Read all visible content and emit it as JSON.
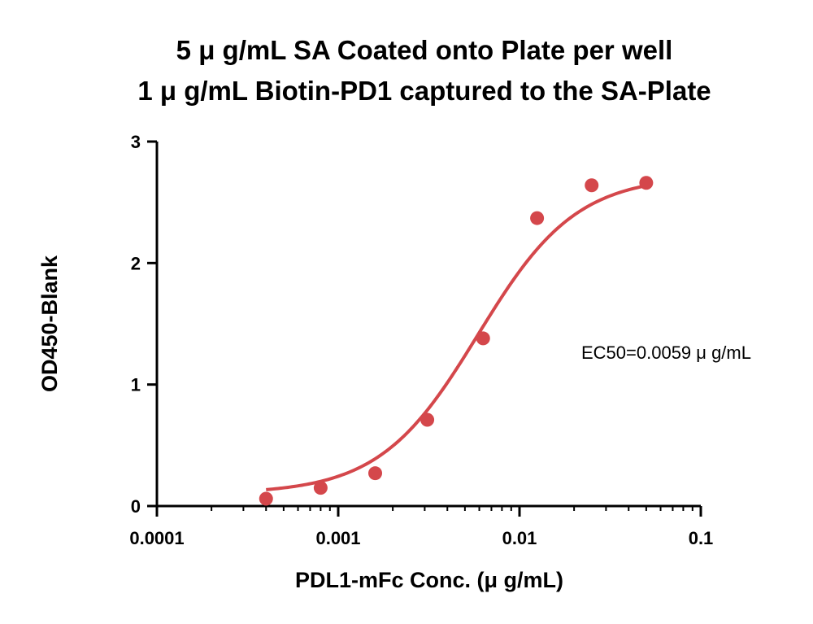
{
  "chart_data": {
    "type": "scatter",
    "title_lines": [
      "5 μ g/mL SA Coated onto Plate per well",
      "1 μ g/mL Biotin-PD1 captured to the SA-Plate"
    ],
    "xlabel": "PDL1-mFc Conc. (μ g/mL)",
    "ylabel": "OD450-Blank",
    "x_scale": "log",
    "xlim": [
      0.0001,
      0.1
    ],
    "ylim": [
      0,
      3
    ],
    "x_ticks": [
      {
        "value": 0.0001,
        "label": "0.0001"
      },
      {
        "value": 0.001,
        "label": "0.001"
      },
      {
        "value": 0.01,
        "label": "0.01"
      },
      {
        "value": 0.1,
        "label": "0.1"
      }
    ],
    "y_ticks": [
      {
        "value": 0,
        "label": "0"
      },
      {
        "value": 1,
        "label": "1"
      },
      {
        "value": 2,
        "label": "2"
      },
      {
        "value": 3,
        "label": "3"
      }
    ],
    "series": [
      {
        "points": [
          {
            "x": 0.0004,
            "y": 0.06
          },
          {
            "x": 0.0008,
            "y": 0.15
          },
          {
            "x": 0.0016,
            "y": 0.27
          },
          {
            "x": 0.0031,
            "y": 0.71
          },
          {
            "x": 0.0063,
            "y": 1.38
          },
          {
            "x": 0.0125,
            "y": 2.37
          },
          {
            "x": 0.025,
            "y": 2.64
          },
          {
            "x": 0.05,
            "y": 2.66
          }
        ],
        "fit": {
          "model": "4PL",
          "bottom": 0.1,
          "top": 2.72,
          "ec50": 0.0059,
          "hill": 1.6,
          "x_range": [
            0.0004,
            0.05
          ]
        },
        "color": "#d4474b"
      }
    ],
    "annotations": [
      {
        "text": "EC50=0.0059 μ g/mL"
      }
    ],
    "grid": false,
    "legend": "none"
  }
}
